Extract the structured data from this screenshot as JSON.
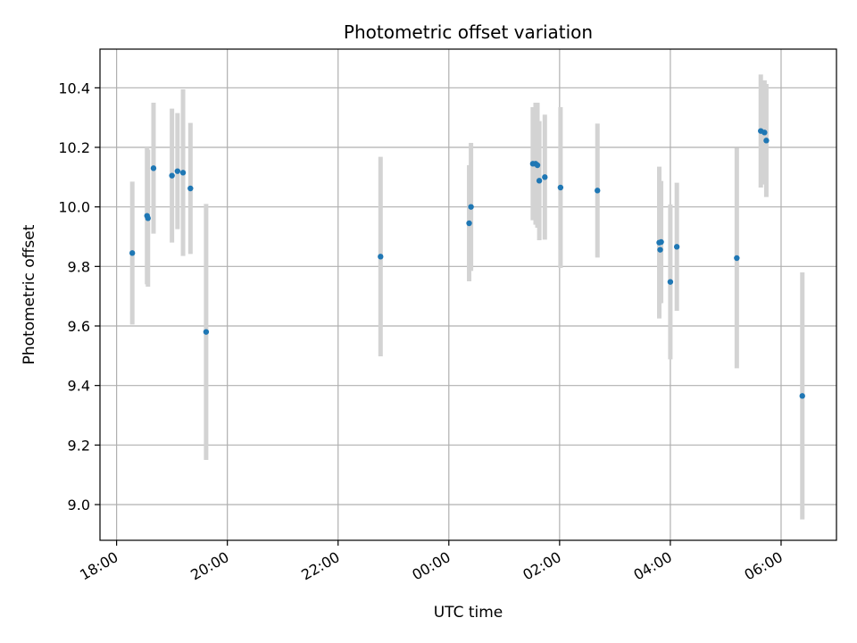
{
  "chart_data": {
    "type": "scatter",
    "title": "Photometric offset variation",
    "xlabel": "UTC time",
    "ylabel": "Photometric offset",
    "x_axis_kind": "time (hours, crossing midnight)",
    "xlim": [
      "17:42",
      "07:00"
    ],
    "ylim": [
      8.88,
      10.53
    ],
    "x_tick_labels": [
      "18:00",
      "20:00",
      "22:00",
      "00:00",
      "02:00",
      "04:00",
      "06:00"
    ],
    "y_tick_labels": [
      "9.0",
      "9.2",
      "9.4",
      "9.6",
      "9.8",
      "10.0",
      "10.2",
      "10.4"
    ],
    "grid": true,
    "legend": "none",
    "colors": {
      "points": "#1f77b4",
      "errorbars": "#d3d3d3",
      "grid": "#b0b0b0",
      "axes": "#000000"
    },
    "series": [
      {
        "points": [
          {
            "x": "18:17",
            "y": 9.845,
            "err": 0.24
          },
          {
            "x": "18:33",
            "y": 9.97,
            "err": 0.23
          },
          {
            "x": "18:34",
            "y": 9.962,
            "err": 0.23
          },
          {
            "x": "18:40",
            "y": 10.13,
            "err": 0.22
          },
          {
            "x": "19:00",
            "y": 10.105,
            "err": 0.225
          },
          {
            "x": "19:06",
            "y": 10.12,
            "err": 0.195
          },
          {
            "x": "19:12",
            "y": 10.115,
            "err": 0.28
          },
          {
            "x": "19:20",
            "y": 10.062,
            "err": 0.22
          },
          {
            "x": "19:37",
            "y": 9.58,
            "err": 0.43
          },
          {
            "x": "22:46",
            "y": 9.833,
            "err": 0.335
          },
          {
            "x": "00:22",
            "y": 9.945,
            "err": 0.195
          },
          {
            "x": "00:24",
            "y": 10.0,
            "err": 0.215
          },
          {
            "x": "01:31",
            "y": 10.145,
            "err": 0.19
          },
          {
            "x": "01:34",
            "y": 10.145,
            "err": 0.205
          },
          {
            "x": "01:36",
            "y": 10.14,
            "err": 0.21
          },
          {
            "x": "01:38",
            "y": 10.088,
            "err": 0.2
          },
          {
            "x": "01:44",
            "y": 10.1,
            "err": 0.21
          },
          {
            "x": "02:01",
            "y": 10.065,
            "err": 0.27
          },
          {
            "x": "02:41",
            "y": 10.055,
            "err": 0.225
          },
          {
            "x": "03:48",
            "y": 9.88,
            "err": 0.255
          },
          {
            "x": "03:49",
            "y": 9.856,
            "err": 0.18
          },
          {
            "x": "03:50",
            "y": 9.882,
            "err": 0.205
          },
          {
            "x": "04:00",
            "y": 9.748,
            "err": 0.26
          },
          {
            "x": "04:07",
            "y": 9.866,
            "err": 0.215
          },
          {
            "x": "05:12",
            "y": 9.828,
            "err": 0.37
          },
          {
            "x": "05:38",
            "y": 10.255,
            "err": 0.19
          },
          {
            "x": "05:42",
            "y": 10.25,
            "err": 0.175
          },
          {
            "x": "05:44",
            "y": 10.223,
            "err": 0.19
          },
          {
            "x": "06:23",
            "y": 9.365,
            "err": 0.415
          }
        ]
      }
    ]
  }
}
